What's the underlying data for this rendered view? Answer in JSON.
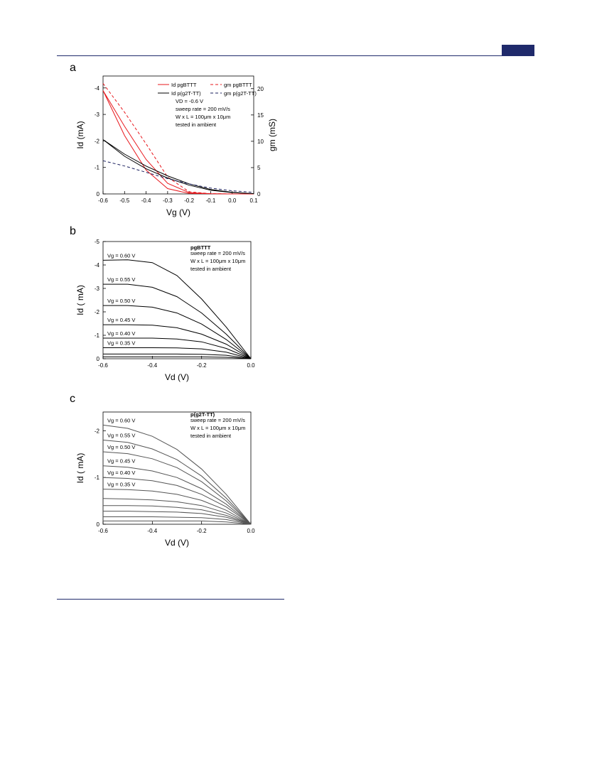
{
  "chart_data": [
    {
      "type": "line",
      "panel": "a",
      "xlabel": "Vg (V)",
      "ylabel": "Id (mA)",
      "y2label": "gm (mS)",
      "xlim": [
        -0.6,
        0.1
      ],
      "xticks": [
        -0.6,
        -0.5,
        -0.4,
        -0.3,
        -0.2,
        -0.1,
        {
          "value": 0,
          "label": "0.0"
        },
        0.1
      ],
      "ylim": [
        0,
        -4.45
      ],
      "yticks": [
        0,
        -1,
        -2,
        -3,
        -4
      ],
      "y2lim": [
        0,
        22.4
      ],
      "y2ticks": [
        0,
        5,
        10,
        15,
        20
      ],
      "legend": "top-right",
      "annotations": [
        "VD = -0.6 V",
        "sweep rate = 200 mV/s",
        "W x L = 100μm x 10μm",
        "tested in ambient"
      ],
      "series": [
        {
          "name": "Id pgBTTT",
          "color": "#e8191e",
          "dash": false,
          "x": [
            -0.6,
            -0.5,
            -0.4,
            -0.3,
            -0.2,
            -0.1,
            0,
            0.1,
            0,
            -0.1,
            -0.2,
            -0.3,
            -0.4,
            -0.5,
            -0.6
          ],
          "values": [
            -3.9,
            -2.55,
            -1.3,
            -0.4,
            -0.05,
            -0.01,
            0,
            0,
            0,
            -0.01,
            -0.02,
            -0.2,
            -0.9,
            -2.2,
            -3.9
          ]
        },
        {
          "name": "gm pgBTTT",
          "color": "#e8191e",
          "dash": true,
          "axis": "y2",
          "x": [
            -0.6,
            -0.5,
            -0.4,
            -0.3,
            -0.2,
            -0.1,
            0,
            0.1
          ],
          "values": [
            21,
            15.5,
            9.5,
            3.2,
            0.4,
            0.05,
            0,
            0
          ]
        },
        {
          "name": "Id p(g2T-TT)",
          "color": "#000000",
          "dash": false,
          "x": [
            -0.6,
            -0.5,
            -0.4,
            -0.3,
            -0.2,
            -0.1,
            0,
            0.1,
            0,
            -0.1,
            -0.2,
            -0.3,
            -0.4,
            -0.5,
            -0.6
          ],
          "values": [
            -2.05,
            -1.5,
            -1.05,
            -0.68,
            -0.38,
            -0.17,
            -0.06,
            -0.01,
            -0.05,
            -0.14,
            -0.33,
            -0.6,
            -0.95,
            -1.42,
            -2.05
          ]
        },
        {
          "name": "gm p(g2T-TT)",
          "color": "#1a1f5e",
          "dash": true,
          "axis": "y2",
          "x": [
            -0.6,
            -0.5,
            -0.4,
            -0.3,
            -0.2,
            -0.1,
            0,
            0.1
          ],
          "values": [
            6.3,
            5.3,
            4.1,
            2.9,
            1.9,
            1.1,
            0.6,
            0.3
          ]
        }
      ]
    },
    {
      "type": "line",
      "panel": "b",
      "xlabel": "Vd (V)",
      "ylabel": "Id ( mA)",
      "xlim": [
        -0.6,
        0
      ],
      "xticks": [
        -0.6,
        -0.4,
        -0.2,
        {
          "value": 0,
          "label": "0.0"
        }
      ],
      "ylim": [
        0,
        -5
      ],
      "yticks": [
        0,
        -1,
        -2,
        -3,
        -4,
        -5
      ],
      "legend": "inline",
      "annotation_title": "pgBTTT",
      "annotations": [
        "sweep rate = 200 mV/s",
        "W x L = 100μm x 10μm",
        "tested in ambient"
      ],
      "x": [
        -0.6,
        -0.5,
        -0.4,
        -0.3,
        -0.2,
        -0.1,
        0
      ],
      "series": [
        {
          "name": "Vg = 0.60 V",
          "color": "#000000",
          "values": [
            -4.2,
            -4.22,
            -4.1,
            -3.55,
            -2.55,
            -1.35,
            0
          ]
        },
        {
          "name": "Vg = 0.55 V",
          "color": "#000000",
          "values": [
            -3.18,
            -3.18,
            -3.05,
            -2.65,
            -1.95,
            -1.05,
            0
          ]
        },
        {
          "name": "Vg = 0.50 V",
          "color": "#000000",
          "values": [
            -2.27,
            -2.27,
            -2.2,
            -1.95,
            -1.48,
            -0.82,
            0
          ]
        },
        {
          "name": "Vg = 0.45 V",
          "color": "#000000",
          "values": [
            -1.45,
            -1.45,
            -1.43,
            -1.32,
            -1.05,
            -0.62,
            0
          ]
        },
        {
          "name": "Vg = 0.40 V",
          "color": "#000000",
          "values": [
            -0.88,
            -0.88,
            -0.88,
            -0.84,
            -0.72,
            -0.44,
            0
          ]
        },
        {
          "name": "Vg = 0.35 V",
          "color": "#000000",
          "values": [
            -0.47,
            -0.47,
            -0.47,
            -0.46,
            -0.42,
            -0.28,
            0
          ]
        },
        {
          "name": null,
          "color": "#000000",
          "values": [
            -0.2,
            -0.2,
            -0.2,
            -0.2,
            -0.19,
            -0.15,
            0
          ]
        },
        {
          "name": null,
          "color": "#000000",
          "values": [
            -0.08,
            -0.08,
            -0.08,
            -0.08,
            -0.08,
            -0.06,
            0
          ]
        }
      ]
    },
    {
      "type": "line",
      "panel": "c",
      "xlabel": "Vd (V)",
      "ylabel": "Id ( mA)",
      "xlim": [
        -0.6,
        0
      ],
      "xticks": [
        -0.6,
        -0.4,
        -0.2,
        {
          "value": 0,
          "label": "0.0"
        }
      ],
      "ylim": [
        0,
        -2.4
      ],
      "yticks": [
        0,
        -1,
        -2
      ],
      "legend": "inline",
      "annotation_title": "p(g2T-TT)",
      "annotations": [
        "sweep rate = 200 mV/s",
        "W x L = 100μm x 10μm",
        "tested in ambient"
      ],
      "x": [
        -0.6,
        -0.5,
        -0.4,
        -0.3,
        -0.2,
        -0.1,
        0
      ],
      "series": [
        {
          "name": "Vg = 0.60 V",
          "color": "#555555",
          "values": [
            -2.12,
            -2.05,
            -1.88,
            -1.6,
            -1.18,
            -0.64,
            0
          ]
        },
        {
          "name": "Vg = 0.55 V",
          "color": "#555555",
          "values": [
            -1.8,
            -1.75,
            -1.61,
            -1.38,
            -1.03,
            -0.56,
            0
          ]
        },
        {
          "name": "Vg = 0.50 V",
          "color": "#555555",
          "values": [
            -1.55,
            -1.51,
            -1.4,
            -1.21,
            -0.91,
            -0.5,
            0
          ]
        },
        {
          "name": "Vg = 0.45 V",
          "color": "#555555",
          "values": [
            -1.25,
            -1.22,
            -1.14,
            -1.0,
            -0.76,
            -0.43,
            0
          ]
        },
        {
          "name": "Vg = 0.40 V",
          "color": "#555555",
          "values": [
            -1.0,
            -0.98,
            -0.93,
            -0.83,
            -0.64,
            -0.37,
            0
          ]
        },
        {
          "name": "Vg = 0.35 V",
          "color": "#555555",
          "values": [
            -0.75,
            -0.74,
            -0.71,
            -0.64,
            -0.51,
            -0.3,
            0
          ]
        },
        {
          "name": null,
          "color": "#555555",
          "values": [
            -0.55,
            -0.54,
            -0.52,
            -0.48,
            -0.4,
            -0.24,
            0
          ]
        },
        {
          "name": null,
          "color": "#555555",
          "values": [
            -0.4,
            -0.4,
            -0.39,
            -0.36,
            -0.31,
            -0.19,
            0
          ]
        },
        {
          "name": null,
          "color": "#555555",
          "values": [
            -0.28,
            -0.28,
            -0.27,
            -0.26,
            -0.23,
            -0.15,
            0
          ]
        },
        {
          "name": null,
          "color": "#555555",
          "values": [
            -0.16,
            -0.16,
            -0.16,
            -0.15,
            -0.14,
            -0.1,
            0
          ]
        },
        {
          "name": null,
          "color": "#555555",
          "values": [
            -0.07,
            -0.07,
            -0.07,
            -0.07,
            -0.07,
            -0.05,
            0
          ]
        }
      ]
    }
  ]
}
